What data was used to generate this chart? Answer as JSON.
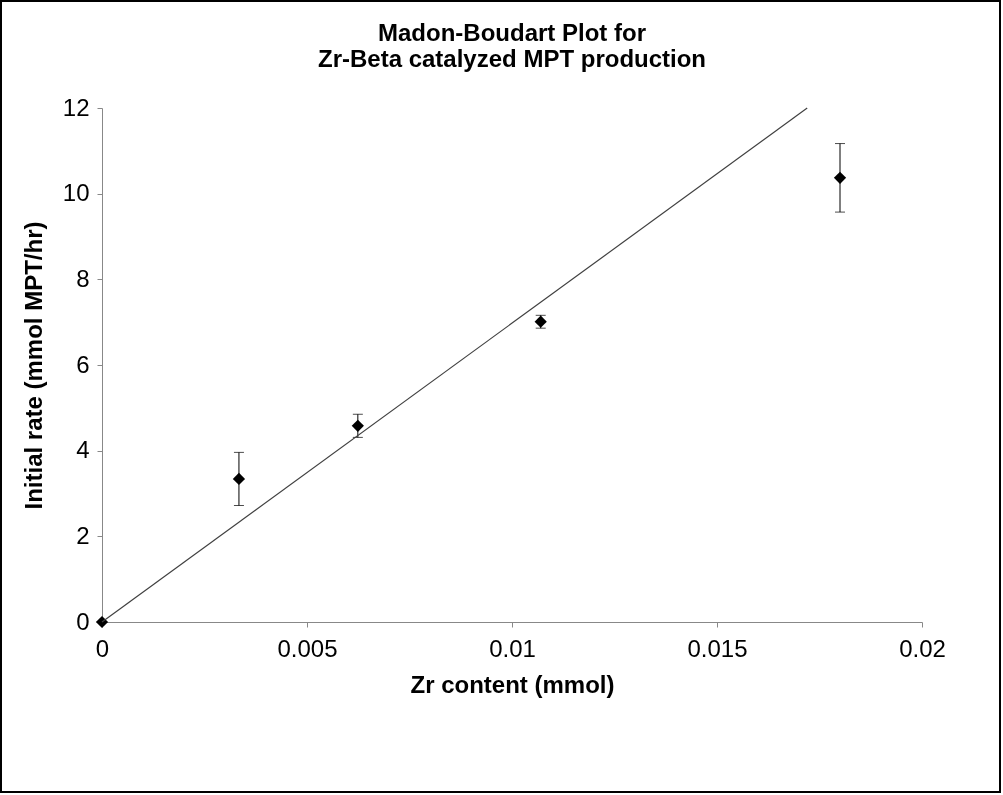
{
  "chart_data": {
    "type": "scatter",
    "title": "Madon-Boudart Plot for\nZr-Beta catalyzed MPT production",
    "xlabel": "Zr content (mmol)",
    "ylabel": "Initial rate (mmol MPT/hr)",
    "xlim": [
      0,
      0.02
    ],
    "xticks": [
      0,
      0.005,
      0.01,
      0.015,
      0.02
    ],
    "ylim": [
      0,
      12
    ],
    "yticks": [
      0,
      2,
      4,
      6,
      8,
      10,
      12
    ],
    "grid": false,
    "series": [
      {
        "marker": "diamond",
        "color": "#000000",
        "x": [
          0,
          0.00334,
          0.00624,
          0.0107,
          0.018
        ],
        "values": [
          0,
          3.34,
          4.58,
          7.01,
          10.37
        ],
        "errors": [
          null,
          0.62,
          0.27,
          0.15,
          0.8
        ]
      },
      {
        "type": "line",
        "marker": "none",
        "color": "#404040",
        "x": [
          0,
          0.0172
        ],
        "values": [
          0,
          12
        ]
      }
    ]
  }
}
